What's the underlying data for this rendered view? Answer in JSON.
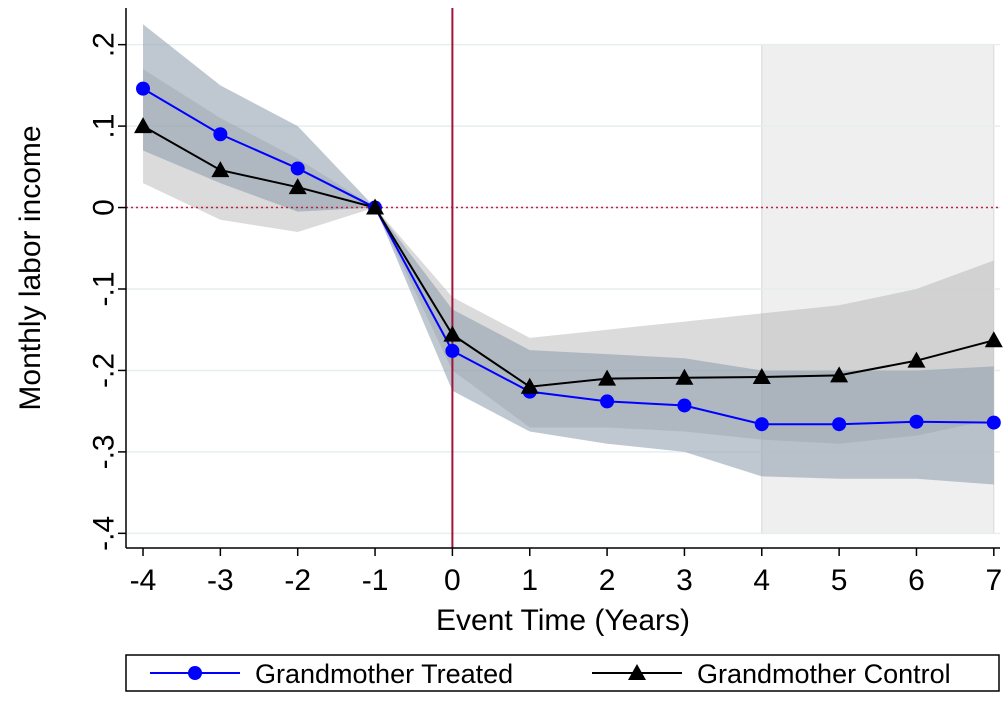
{
  "chart_data": {
    "type": "line",
    "x_label": "Event Time (Years)",
    "y_label": "Monthly labor income",
    "x": [
      -4,
      -3,
      -2,
      -1,
      0,
      1,
      2,
      3,
      4,
      5,
      6,
      7
    ],
    "series": [
      {
        "name": "Grandmother Treated",
        "color": "#0000ff",
        "marker": "circle",
        "band_color": "#8a9aac",
        "values": [
          0.146,
          0.09,
          0.048,
          0,
          -0.176,
          -0.226,
          -0.238,
          -0.243,
          -0.266,
          -0.266,
          -0.263,
          -0.264
        ],
        "lower": [
          0.07,
          0.03,
          -0.005,
          0,
          -0.225,
          -0.275,
          -0.29,
          -0.3,
          -0.33,
          -0.333,
          -0.333,
          -0.34
        ],
        "upper": [
          0.225,
          0.15,
          0.1,
          0,
          -0.125,
          -0.175,
          -0.18,
          -0.185,
          -0.2,
          -0.2,
          -0.2,
          -0.195
        ]
      },
      {
        "name": "Grandmother Control",
        "color": "#000000",
        "marker": "triangle",
        "band_color": "#b0b0b0",
        "values": [
          0.1,
          0.046,
          0.025,
          0,
          -0.156,
          -0.22,
          -0.21,
          -0.209,
          -0.208,
          -0.206,
          -0.188,
          -0.163
        ],
        "lower": [
          0.03,
          -0.015,
          -0.03,
          0,
          -0.2,
          -0.27,
          -0.27,
          -0.275,
          -0.285,
          -0.29,
          -0.28,
          -0.26
        ],
        "upper": [
          0.17,
          0.11,
          0.06,
          0,
          -0.11,
          -0.16,
          -0.15,
          -0.14,
          -0.13,
          -0.12,
          -0.1,
          -0.065
        ]
      }
    ],
    "xlim": [
      -4.22,
      7.08
    ],
    "ylim": [
      -0.418,
      0.245
    ],
    "xticks": [
      -4,
      -3,
      -2,
      -1,
      0,
      1,
      2,
      3,
      4,
      5,
      6,
      7
    ],
    "yticks": [
      {
        "value": -0.4,
        "label": "-.4"
      },
      {
        "value": -0.3,
        "label": "-.3"
      },
      {
        "value": -0.2,
        "label": "-.2"
      },
      {
        "value": -0.1,
        "label": "-.1"
      },
      0,
      {
        "value": 0.1,
        "label": ".1"
      },
      {
        "value": 0.2,
        "label": ".2"
      }
    ],
    "grid": true,
    "vline": {
      "x": 0,
      "color": "#a0143c"
    },
    "hline": {
      "y": 0,
      "color": "#c02040"
    },
    "shaded_region": {
      "x": [
        4,
        7
      ],
      "y": [
        -0.4,
        0.2
      ]
    },
    "legend": "bottom"
  }
}
